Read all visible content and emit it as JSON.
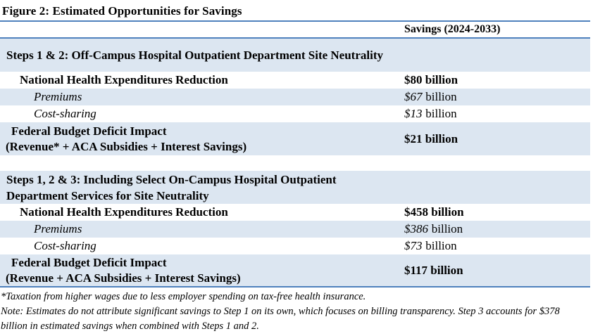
{
  "title": "Figure 2: Estimated Opportunities for Savings",
  "colors": {
    "row_shade": "#dce6f1",
    "table_border": "#4f81bd",
    "text": "#000000"
  },
  "table": {
    "value_column_header": "Savings (2024-2033)",
    "sections": [
      {
        "header": "Steps 1 & 2: Off-Campus Hospital Outpatient Department Site Neutrality",
        "rows": [
          {
            "label": "National Health Expenditures Reduction",
            "value": "$80 billion"
          },
          {
            "label": "Premiums",
            "value_amount": "$67",
            "value_unit": "billion"
          },
          {
            "label": "Cost-sharing",
            "value_amount": "$13",
            "value_unit": "billion"
          },
          {
            "label": "Federal Budget Deficit Impact",
            "label_detail": "(Revenue* + ACA Subsidies + Interest Savings)",
            "value": "$21 billion"
          }
        ]
      },
      {
        "header": "Steps 1, 2 & 3: Including Select On-Campus Hospital Outpatient Department Services for Site Neutrality",
        "rows": [
          {
            "label": "National Health Expenditures Reduction",
            "value": "$458 billion"
          },
          {
            "label": "Premiums",
            "value_amount": "$386",
            "value_unit": "billion"
          },
          {
            "label": "Cost-sharing",
            "value_amount": "$73",
            "value_unit": "billion"
          },
          {
            "label": "Federal Budget Deficit Impact",
            "label_detail": "(Revenue + ACA Subsidies + Interest Savings)",
            "value": "$117 billion"
          }
        ]
      }
    ]
  },
  "footnotes": [
    "*Taxation from higher wages due to less employer spending on tax-free health insurance.",
    "Note: Estimates do not attribute significant savings to Step 1 on its own, which focuses on billing transparency. Step 3 accounts for $378 billion in estimated savings when combined with Steps 1 and 2."
  ]
}
